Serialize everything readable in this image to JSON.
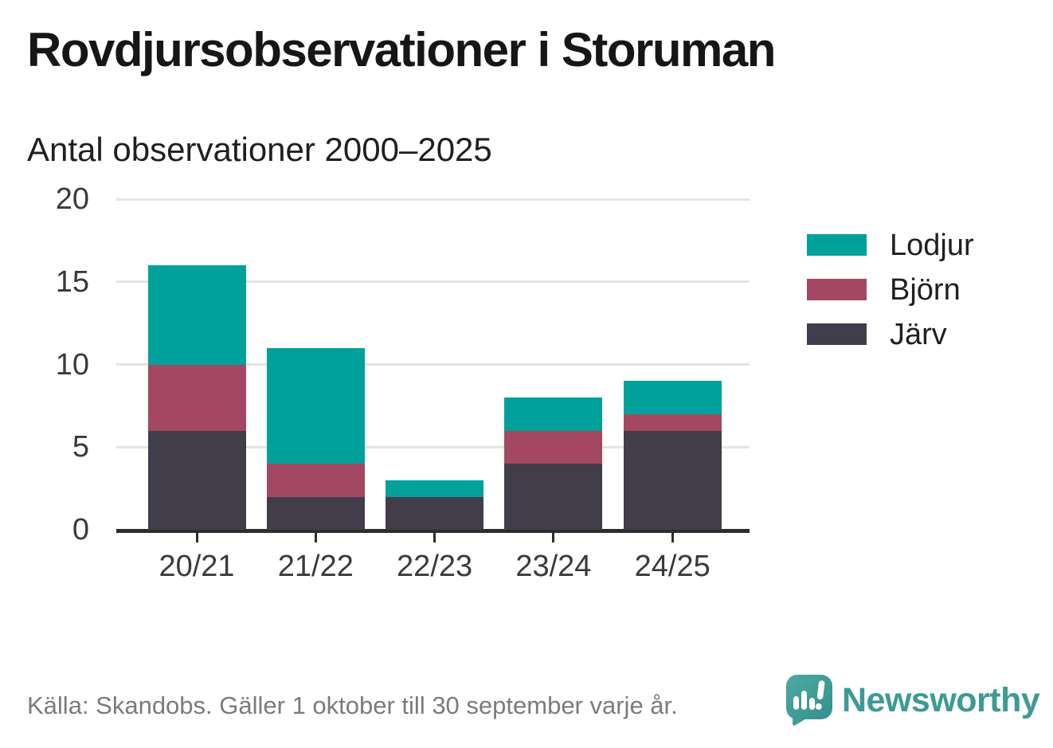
{
  "title": "Rovdjursobservationer i Storuman",
  "subtitle": "Antal observationer 2000–2025",
  "footer": {
    "source": "Källa: Skandobs. Gäller 1 oktober till 30 september varje år.",
    "brand": "Newsworthy",
    "brand_color": "#3d9a94"
  },
  "chart_data": {
    "type": "bar",
    "stacked": true,
    "title": "Rovdjursobservationer i Storuman",
    "subtitle": "Antal observationer 2000–2025",
    "categories": [
      "20/21",
      "21/22",
      "22/23",
      "23/24",
      "24/25"
    ],
    "series": [
      {
        "name": "Lodjur",
        "color": "#00a19a",
        "values": [
          6,
          7,
          1,
          2,
          2
        ]
      },
      {
        "name": "Björn",
        "color": "#a34763",
        "values": [
          4,
          2,
          0,
          2,
          1
        ]
      },
      {
        "name": "Järv",
        "color": "#423d4b",
        "values": [
          6,
          2,
          2,
          4,
          6
        ]
      }
    ],
    "stack_order_bottom_to_top": [
      "Järv",
      "Björn",
      "Lodjur"
    ],
    "totals": [
      16,
      11,
      3,
      8,
      9
    ],
    "xlabel": "",
    "ylabel": "",
    "ylim": [
      0,
      20
    ],
    "yticks": [
      0,
      5,
      10,
      15,
      20
    ],
    "grid": "horizontal",
    "grid_color": "#e4e4e4",
    "axis_color": "#2d2d2d",
    "legend_position": "right"
  }
}
